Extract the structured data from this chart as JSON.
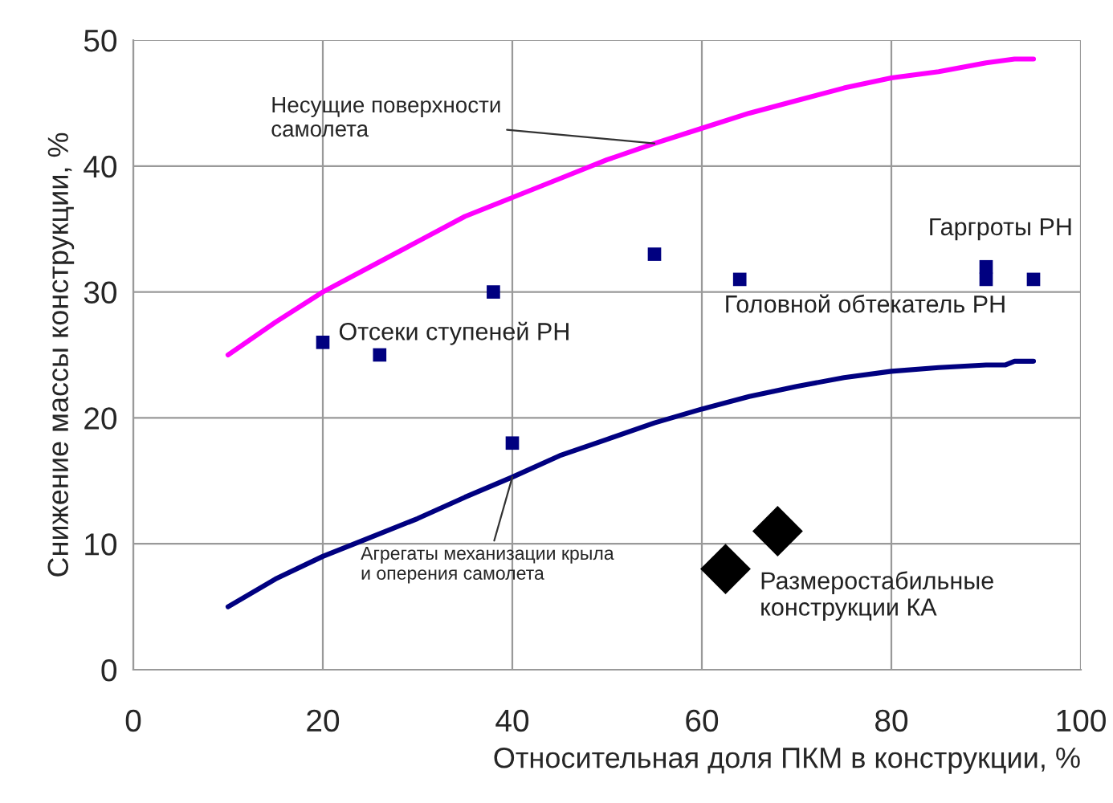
{
  "chart_data": {
    "type": "line",
    "xlabel": "Относительная доля ПКМ в конструкции, %",
    "ylabel": "Снижение массы конструкции, %",
    "xlim": [
      0,
      100
    ],
    "xticks": [
      0,
      20,
      40,
      60,
      80,
      100
    ],
    "ylim": [
      0,
      50
    ],
    "yticks": [
      0,
      10,
      20,
      30,
      40,
      50
    ],
    "grid": true,
    "legend": false,
    "series": [
      {
        "name": "Несущие поверхности\nсамолета",
        "color": "#ff00ff",
        "x": [
          10,
          15,
          20,
          25,
          30,
          35,
          40,
          45,
          50,
          55,
          60,
          65,
          70,
          75,
          80,
          85,
          90,
          93,
          95
        ],
        "values": [
          25,
          27.6,
          30,
          32,
          34,
          36,
          37.5,
          39,
          40.5,
          41.8,
          43,
          44.2,
          45.2,
          46.2,
          47,
          47.5,
          48.2,
          48.5,
          48.5
        ]
      },
      {
        "name": "Агрегаты механизации крыла\nи оперения самолета",
        "color": "#000080",
        "x": [
          10,
          15,
          20,
          25,
          30,
          35,
          40,
          45,
          50,
          55,
          60,
          65,
          70,
          75,
          80,
          85,
          90,
          92,
          93,
          95
        ],
        "values": [
          5,
          7.2,
          9,
          10.5,
          12,
          13.7,
          15.3,
          17,
          18.3,
          19.6,
          20.7,
          21.7,
          22.5,
          23.2,
          23.7,
          24,
          24.2,
          24.2,
          24.5,
          24.5
        ]
      },
      {
        "type": "scatter",
        "marker": "square",
        "color": "#000080",
        "x": [
          20,
          26,
          38,
          40,
          55,
          64,
          90,
          90,
          95
        ],
        "values": [
          26,
          25,
          30,
          18,
          33,
          31,
          32,
          31,
          31
        ]
      },
      {
        "type": "scatter",
        "marker": "diamond",
        "color": "#000000",
        "x": [
          62.5,
          68
        ],
        "values": [
          8,
          11
        ]
      }
    ],
    "annotations": [
      {
        "text": "Отсеки ступеней РН",
        "x": 20,
        "y": 26
      },
      {
        "text": "Гаргроты РН",
        "x": 90,
        "y": 32
      },
      {
        "text": "Головной обтекатель РН",
        "x": 64,
        "y": 31
      },
      {
        "text": "Размеростабильные\nконструкции КА",
        "x": 68,
        "y": 11
      }
    ]
  }
}
